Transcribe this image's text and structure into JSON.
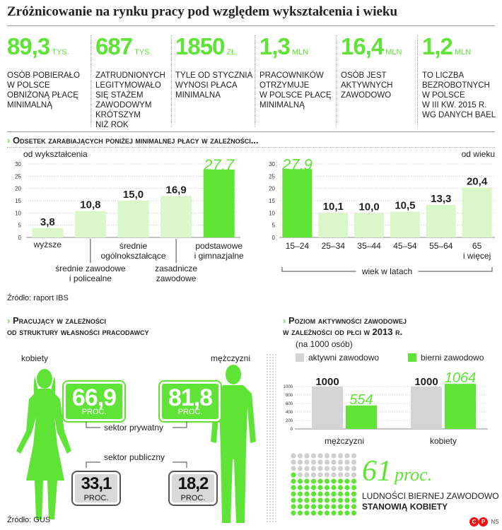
{
  "title": "Zróżnicowanie na rynku pracy pod względem wykształcenia i wieku",
  "colors": {
    "accent": "#5fe336",
    "accent_light": "#d9f7c9",
    "gray_bar": "#d4d4d4",
    "text": "#222222"
  },
  "stats": [
    {
      "value": "89,3",
      "unit": "TYS.",
      "text": "OSÓB POBIERAŁO\nW POLSCE\nOBNIŻONĄ PŁACĘ\nMINIMALNĄ"
    },
    {
      "value": "687",
      "unit": "TYS.",
      "text": "ZATRUDNIONYCH\nLEGITYMOWAŁO\nSIĘ STAŻEM\nZAWODOWYM\nKRÓTSZYM\nNIŻ ROK"
    },
    {
      "value": "1850",
      "unit": "ZŁ",
      "text": "TYLE OD STYCZNIA\nWYNOSI PŁACA\nMINIMALNA"
    },
    {
      "value": "1,3",
      "unit": "MLN",
      "text": "PRACOWNIKÓW\nOTRZYMUJE\nW POLSCE PŁACĘ\nMINIMALNĄ"
    },
    {
      "value": "16,4",
      "unit": "MLN",
      "text": "OSÓB JEST\nAKTYWNYCH\nZAWODOWO"
    },
    {
      "value": "1,2",
      "unit": "MLN",
      "text": "TO LICZBA\nBEZROBOTNYCH\nW POLSCE\nW III KW. 2015 R.\nWG DANYCH BAEL"
    }
  ],
  "section1_title": "Odsetek zarabiających poniżej minimalnej płacy w zależności...",
  "source1": "Źródło: raport IBS",
  "section2_title": "Pracujący w zależności\nod struktury własności pracodawcy",
  "section3_title": "Poziom aktywności zawodowej\nw zależności od płci w 2013 r.",
  "section3_subtitle": "(na 1000 osób)",
  "source2": "Źródło: GUS",
  "ownership": {
    "women_label": "kobiety",
    "men_label": "mężczyzni",
    "private_label": "sektor prywatny",
    "public_label": "sektor publiczny",
    "unit": "PROC.",
    "women_private": "66,9",
    "men_private": "81,8",
    "women_public": "33,1",
    "men_public": "18,2"
  },
  "inactive_share": {
    "value": "61",
    "unit": "proc.",
    "fraction": 0.61,
    "text1": "LUDNOŚCI BIERNEJ ZAWODOWO",
    "text2": "STANOWIĄ KOBIETY"
  },
  "logo_text": "NS",
  "chart_data": [
    {
      "type": "bar",
      "title": "od wykształcenia",
      "categories": [
        "wyższe",
        "średnie zawodowe\ni policealne",
        "średnie\nogólnokształcące",
        "zasadnicze\nzawodowe",
        "podstawowe\ni gimnazjalne"
      ],
      "values": [
        3.8,
        10.8,
        15.0,
        16.9,
        27.7
      ],
      "value_labels": [
        "3,8",
        "10,8",
        "15,0",
        "16,9",
        "27,7"
      ],
      "ylim": [
        0,
        30
      ],
      "yticks": [
        0,
        5,
        10,
        15,
        20,
        25,
        30
      ],
      "grid": true
    },
    {
      "type": "bar",
      "title": "od wieku",
      "xlabel": "wiek w latach",
      "categories": [
        "15–24",
        "25–34",
        "35–44",
        "45–54",
        "55–64",
        "65\ni więcej"
      ],
      "values": [
        27.9,
        10.1,
        10.0,
        10.5,
        13.3,
        20.4
      ],
      "value_labels": [
        "27,9",
        "10,1",
        "10,0",
        "10,5",
        "13,3",
        "20,4"
      ],
      "ylim": [
        0,
        30
      ],
      "yticks": [
        0,
        5,
        10,
        15,
        20,
        25,
        30
      ],
      "grid": true
    },
    {
      "type": "bar",
      "ylim": [
        0,
        1000
      ],
      "yticks": [
        0,
        200,
        400,
        600,
        800,
        1000
      ],
      "categories": [
        "mężczyzni",
        "kobiety"
      ],
      "series": [
        {
          "name": "aktywni zawodowo",
          "values": [
            1000,
            1000
          ],
          "labels": [
            "1000",
            "1000"
          ]
        },
        {
          "name": "bierni zawodowo",
          "values": [
            554,
            1064
          ],
          "labels": [
            "554",
            "1064"
          ]
        }
      ],
      "legend": "top"
    }
  ]
}
